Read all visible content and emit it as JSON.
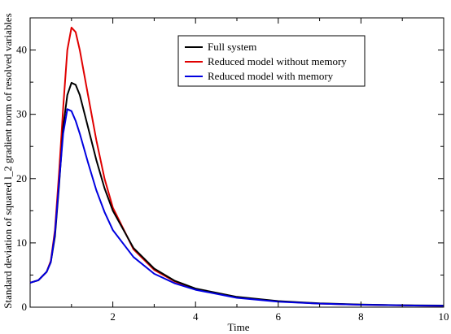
{
  "chart_data": {
    "type": "line",
    "title": "",
    "xlabel": "Time",
    "ylabel": "Standard deviation of squared l_2 gradient norm of resolved variables",
    "xlim": [
      0,
      10
    ],
    "ylim": [
      0,
      45
    ],
    "xticks": [
      2,
      4,
      6,
      8,
      10
    ],
    "yticks": [
      0,
      10,
      20,
      30,
      40
    ],
    "grid": false,
    "legend_position": "top-right",
    "x": [
      0,
      0.2,
      0.4,
      0.5,
      0.6,
      0.7,
      0.8,
      0.9,
      1.0,
      1.1,
      1.2,
      1.4,
      1.6,
      1.8,
      2.0,
      2.5,
      3.0,
      3.5,
      4.0,
      5.0,
      6.0,
      7.0,
      8.0,
      9.0,
      10.0
    ],
    "series": [
      {
        "name": "Full system",
        "color": "#000000",
        "values": [
          3.8,
          4.2,
          5.5,
          7.0,
          11.0,
          19.0,
          28.0,
          33.0,
          34.9,
          34.6,
          33.0,
          28.0,
          22.9,
          18.5,
          15.0,
          9.2,
          6.0,
          4.1,
          2.9,
          1.6,
          0.95,
          0.6,
          0.4,
          0.3,
          0.25
        ]
      },
      {
        "name": "Reduced model without memory",
        "color": "#e00000",
        "values": [
          3.8,
          4.2,
          5.5,
          7.2,
          12.0,
          21.0,
          31.0,
          40.0,
          43.5,
          42.8,
          40.0,
          33.0,
          26.0,
          20.0,
          15.5,
          9.0,
          5.8,
          4.0,
          2.8,
          1.5,
          0.9,
          0.55,
          0.38,
          0.28,
          0.2
        ]
      },
      {
        "name": "Reduced model with memory",
        "color": "#0000e0",
        "values": [
          3.8,
          4.2,
          5.5,
          7.0,
          11.5,
          19.5,
          27.0,
          30.8,
          30.5,
          29.0,
          27.0,
          22.5,
          18.2,
          14.8,
          12.0,
          7.8,
          5.2,
          3.7,
          2.7,
          1.45,
          0.85,
          0.55,
          0.38,
          0.28,
          0.2
        ]
      }
    ]
  }
}
